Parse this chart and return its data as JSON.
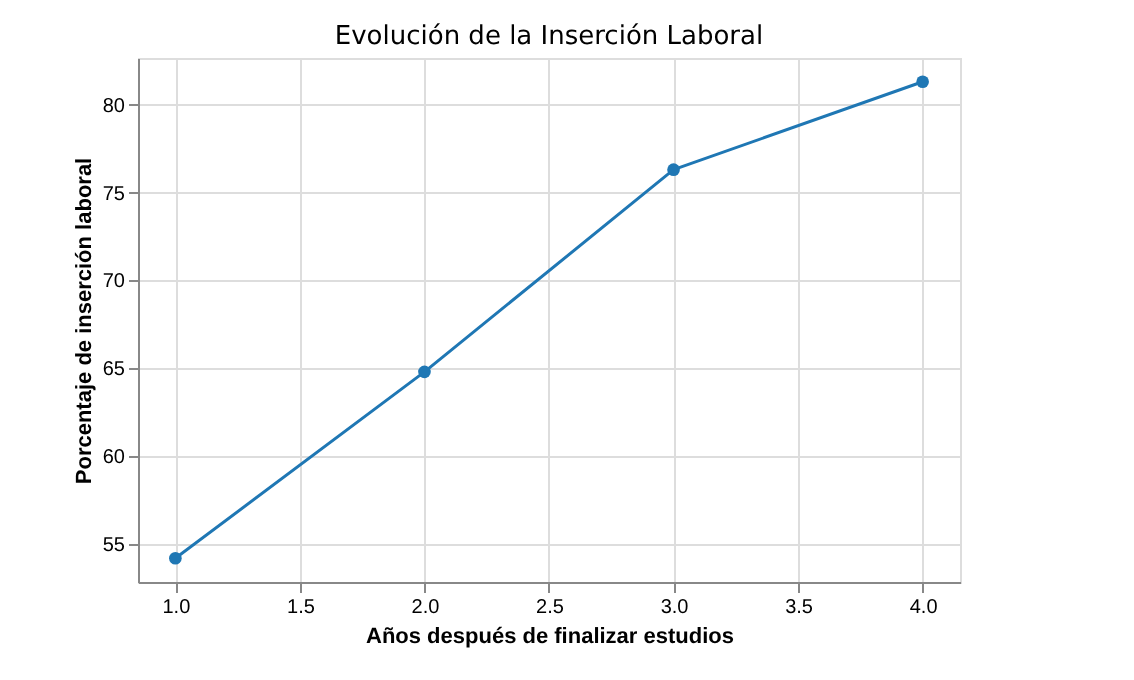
{
  "chart_data": {
    "type": "line",
    "title": "Evolución de la Inserción Laboral",
    "xlabel": "Años después de finalizar estudios",
    "ylabel": "Porcentaje de inserción laboral",
    "x": [
      1,
      2,
      3,
      4
    ],
    "series": [
      {
        "color": "#1f77b4",
        "values": [
          54.2,
          64.8,
          76.3,
          81.3
        ]
      }
    ],
    "xlim": [
      0.85,
      4.15
    ],
    "xticks": [
      {
        "value": 1,
        "label": "1.0"
      },
      {
        "value": 1.5,
        "label": "1.5"
      },
      {
        "value": 2,
        "label": "2.0"
      },
      {
        "value": 2.5,
        "label": "2.5"
      },
      {
        "value": 3,
        "label": "3.0"
      },
      {
        "value": 3.5,
        "label": "3.5"
      },
      {
        "value": 4,
        "label": "4.0"
      }
    ],
    "ylim": [
      52.85,
      82.65
    ],
    "yticks": [
      55,
      60,
      65,
      70,
      75,
      80
    ],
    "grid": true,
    "marker": "circle",
    "line_style": "solid",
    "legend": false
  }
}
